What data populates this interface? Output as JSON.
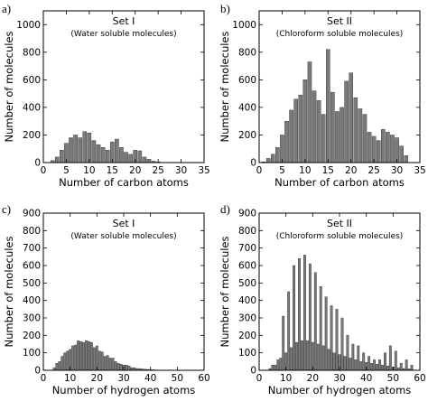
{
  "chart_data": [
    {
      "type": "bar",
      "panel_label": "a)",
      "title": "Set I",
      "subtitle": "(Water soluble molecules)",
      "xlabel": "Number of carbon atoms",
      "ylabel": "Number of molecules",
      "xlim": [
        0,
        35
      ],
      "ylim": [
        0,
        1100
      ],
      "xticks": [
        0,
        5,
        10,
        15,
        20,
        25,
        30,
        35
      ],
      "yticks": [
        0,
        200,
        400,
        600,
        800,
        1000
      ],
      "bar_color": "#7a7a7a",
      "series": [
        {
          "x": [
            2,
            3,
            4,
            5,
            6,
            7,
            8,
            9,
            10,
            11,
            12,
            13,
            14,
            15,
            16,
            17,
            18,
            19,
            20,
            21,
            22,
            23,
            24,
            25
          ],
          "values": [
            15,
            40,
            90,
            140,
            180,
            200,
            180,
            225,
            215,
            160,
            130,
            110,
            90,
            150,
            170,
            110,
            75,
            60,
            90,
            85,
            40,
            25,
            10,
            5
          ]
        }
      ]
    },
    {
      "type": "bar",
      "panel_label": "b)",
      "title": "Set II",
      "subtitle": "(Chloroform soluble molecules)",
      "xlabel": "Number of carbon atoms",
      "ylabel": "Number of molecules",
      "xlim": [
        0,
        35
      ],
      "ylim": [
        0,
        1100
      ],
      "xticks": [
        0,
        5,
        10,
        15,
        20,
        25,
        30,
        35
      ],
      "yticks": [
        0,
        200,
        400,
        600,
        800,
        1000
      ],
      "bar_color": "#7a7a7a",
      "series": [
        {
          "x": [
            1,
            2,
            3,
            4,
            5,
            6,
            7,
            8,
            9,
            10,
            11,
            12,
            13,
            14,
            15,
            16,
            17,
            18,
            19,
            20,
            21,
            22,
            23,
            24,
            25,
            26,
            27,
            28,
            29,
            30,
            31,
            32
          ],
          "values": [
            5,
            30,
            60,
            110,
            200,
            300,
            380,
            460,
            490,
            600,
            730,
            520,
            450,
            350,
            820,
            510,
            370,
            400,
            590,
            650,
            470,
            390,
            350,
            220,
            190,
            160,
            240,
            220,
            200,
            180,
            120,
            50
          ]
        }
      ]
    },
    {
      "type": "bar",
      "panel_label": "c)",
      "title": "Set I",
      "subtitle": "(Water soluble molecules)",
      "xlabel": "Number of hydrogen atoms",
      "ylabel": "Number of molecules",
      "xlim": [
        0,
        60
      ],
      "ylim": [
        0,
        900
      ],
      "xticks": [
        0,
        10,
        20,
        30,
        40,
        50,
        60
      ],
      "yticks": [
        0,
        100,
        200,
        300,
        400,
        500,
        600,
        700,
        800,
        900
      ],
      "bar_color": "#7a7a7a",
      "series": [
        {
          "x": [
            4,
            5,
            6,
            7,
            8,
            9,
            10,
            11,
            12,
            13,
            14,
            15,
            16,
            17,
            18,
            19,
            20,
            21,
            22,
            23,
            24,
            25,
            26,
            27,
            28,
            29,
            30,
            31,
            32,
            33,
            34,
            35,
            36,
            37,
            38,
            39,
            40,
            41,
            42
          ],
          "values": [
            15,
            40,
            50,
            80,
            100,
            110,
            120,
            140,
            145,
            170,
            165,
            160,
            170,
            165,
            160,
            130,
            140,
            110,
            105,
            80,
            85,
            70,
            70,
            50,
            40,
            35,
            30,
            30,
            25,
            15,
            15,
            10,
            10,
            8,
            6,
            5,
            4,
            3,
            2
          ]
        }
      ]
    },
    {
      "type": "bar",
      "panel_label": "d)",
      "title": "Set II",
      "subtitle": "(Chloroform soluble molecules)",
      "xlabel": "Number of hydrogen atoms",
      "ylabel": "Number of molecules",
      "xlim": [
        0,
        60
      ],
      "ylim": [
        0,
        900
      ],
      "xticks": [
        0,
        10,
        20,
        30,
        40,
        50,
        60
      ],
      "yticks": [
        0,
        100,
        200,
        300,
        400,
        500,
        600,
        700,
        800,
        900
      ],
      "bar_color": "#7a7a7a",
      "series": [
        {
          "x": [
            4,
            5,
            6,
            7,
            8,
            9,
            10,
            11,
            12,
            13,
            14,
            15,
            16,
            17,
            18,
            19,
            20,
            21,
            22,
            23,
            24,
            25,
            26,
            27,
            28,
            29,
            30,
            31,
            32,
            33,
            34,
            35,
            36,
            37,
            38,
            39,
            40,
            41,
            42,
            43,
            44,
            45,
            46,
            47,
            48,
            49,
            50,
            51,
            52,
            53,
            54,
            55,
            56,
            57
          ],
          "values": [
            10,
            30,
            30,
            60,
            70,
            310,
            100,
            450,
            130,
            600,
            160,
            640,
            170,
            660,
            170,
            610,
            160,
            560,
            150,
            480,
            140,
            420,
            120,
            370,
            100,
            350,
            90,
            300,
            80,
            200,
            70,
            150,
            60,
            140,
            50,
            100,
            45,
            80,
            40,
            60,
            35,
            60,
            30,
            100,
            25,
            140,
            20,
            110,
            15,
            40,
            10,
            60,
            8,
            30
          ]
        }
      ]
    }
  ]
}
